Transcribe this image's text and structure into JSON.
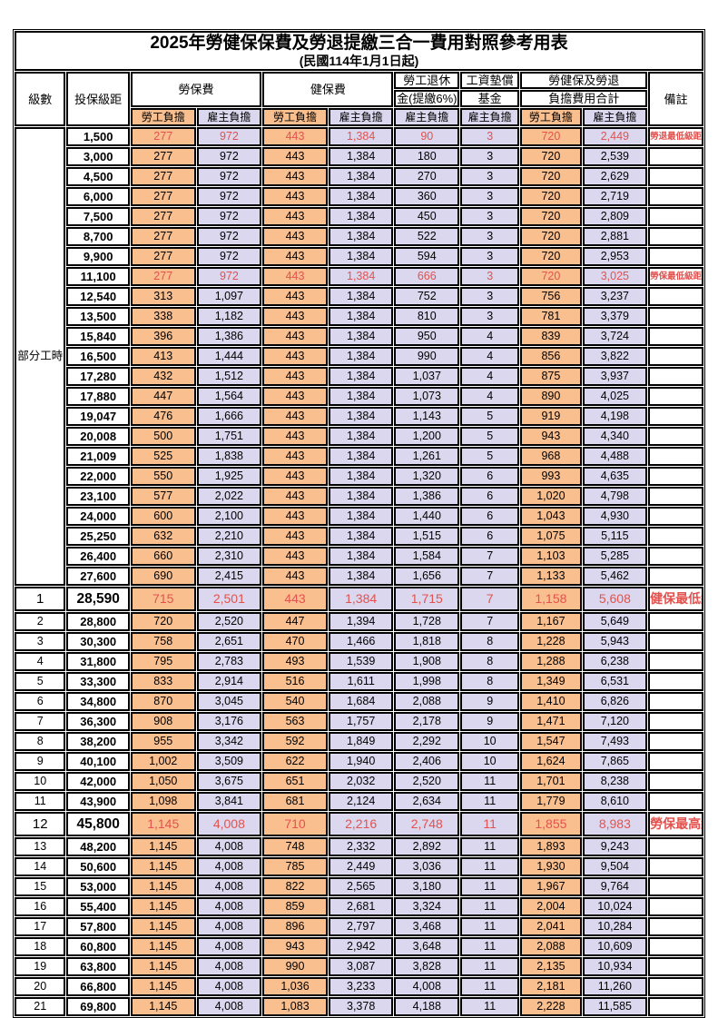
{
  "title": {
    "main": "2025年勞健保保費及勞退提繳三合一費用對照參考用表",
    "subtitle": "(民國114年1月1日起)"
  },
  "headers": {
    "level": "級數",
    "bracket": "投保級距",
    "labor_insurance": "勞保費",
    "health_insurance": "健保費",
    "pension_line1": "勞工退休",
    "pension_line2": "金(提繳6%)",
    "wage_fund_line1": "工資墊償",
    "wage_fund_line2": "基金",
    "total_line1": "勞健保及勞退",
    "total_line2": "負擔費用合計",
    "notes": "備註",
    "employee": "勞工負擔",
    "employer": "雇主負擔"
  },
  "part_time_label": "部分工時",
  "colors": {
    "employee_bg": "#fabf8f",
    "employer_bg": "#dbd7ee",
    "highlight_red": "#e3524e"
  },
  "rows": [
    {
      "lv": "",
      "bk": "1,500",
      "v": [
        "277",
        "972",
        "443",
        "1,384",
        "90",
        "3",
        "720",
        "2,449"
      ],
      "note": "勞退最低級距",
      "red": true
    },
    {
      "lv": "",
      "bk": "3,000",
      "v": [
        "277",
        "972",
        "443",
        "1,384",
        "180",
        "3",
        "720",
        "2,539"
      ],
      "note": ""
    },
    {
      "lv": "",
      "bk": "4,500",
      "v": [
        "277",
        "972",
        "443",
        "1,384",
        "270",
        "3",
        "720",
        "2,629"
      ],
      "note": ""
    },
    {
      "lv": "",
      "bk": "6,000",
      "v": [
        "277",
        "972",
        "443",
        "1,384",
        "360",
        "3",
        "720",
        "2,719"
      ],
      "note": ""
    },
    {
      "lv": "",
      "bk": "7,500",
      "v": [
        "277",
        "972",
        "443",
        "1,384",
        "450",
        "3",
        "720",
        "2,809"
      ],
      "note": ""
    },
    {
      "lv": "",
      "bk": "8,700",
      "v": [
        "277",
        "972",
        "443",
        "1,384",
        "522",
        "3",
        "720",
        "2,881"
      ],
      "note": ""
    },
    {
      "lv": "",
      "bk": "9,900",
      "v": [
        "277",
        "972",
        "443",
        "1,384",
        "594",
        "3",
        "720",
        "2,953"
      ],
      "note": ""
    },
    {
      "lv": "",
      "bk": "11,100",
      "v": [
        "277",
        "972",
        "443",
        "1,384",
        "666",
        "3",
        "720",
        "3,025"
      ],
      "note": "勞保最低級距",
      "red": true
    },
    {
      "lv": "",
      "bk": "12,540",
      "v": [
        "313",
        "1,097",
        "443",
        "1,384",
        "752",
        "3",
        "756",
        "3,237"
      ],
      "note": ""
    },
    {
      "lv": "",
      "bk": "13,500",
      "v": [
        "338",
        "1,182",
        "443",
        "1,384",
        "810",
        "3",
        "781",
        "3,379"
      ],
      "note": ""
    },
    {
      "lv": "",
      "bk": "15,840",
      "v": [
        "396",
        "1,386",
        "443",
        "1,384",
        "950",
        "4",
        "839",
        "3,724"
      ],
      "note": ""
    },
    {
      "lv": "",
      "bk": "16,500",
      "v": [
        "413",
        "1,444",
        "443",
        "1,384",
        "990",
        "4",
        "856",
        "3,822"
      ],
      "note": ""
    },
    {
      "lv": "",
      "bk": "17,280",
      "v": [
        "432",
        "1,512",
        "443",
        "1,384",
        "1,037",
        "4",
        "875",
        "3,937"
      ],
      "note": ""
    },
    {
      "lv": "",
      "bk": "17,880",
      "v": [
        "447",
        "1,564",
        "443",
        "1,384",
        "1,073",
        "4",
        "890",
        "4,025"
      ],
      "note": ""
    },
    {
      "lv": "",
      "bk": "19,047",
      "v": [
        "476",
        "1,666",
        "443",
        "1,384",
        "1,143",
        "5",
        "919",
        "4,198"
      ],
      "note": ""
    },
    {
      "lv": "",
      "bk": "20,008",
      "v": [
        "500",
        "1,751",
        "443",
        "1,384",
        "1,200",
        "5",
        "943",
        "4,340"
      ],
      "note": ""
    },
    {
      "lv": "",
      "bk": "21,009",
      "v": [
        "525",
        "1,838",
        "443",
        "1,384",
        "1,261",
        "5",
        "968",
        "4,488"
      ],
      "note": ""
    },
    {
      "lv": "",
      "bk": "22,000",
      "v": [
        "550",
        "1,925",
        "443",
        "1,384",
        "1,320",
        "6",
        "993",
        "4,635"
      ],
      "note": ""
    },
    {
      "lv": "",
      "bk": "23,100",
      "v": [
        "577",
        "2,022",
        "443",
        "1,384",
        "1,386",
        "6",
        "1,020",
        "4,798"
      ],
      "note": ""
    },
    {
      "lv": "",
      "bk": "24,000",
      "v": [
        "600",
        "2,100",
        "443",
        "1,384",
        "1,440",
        "6",
        "1,043",
        "4,930"
      ],
      "note": ""
    },
    {
      "lv": "",
      "bk": "25,250",
      "v": [
        "632",
        "2,210",
        "443",
        "1,384",
        "1,515",
        "6",
        "1,075",
        "5,115"
      ],
      "note": ""
    },
    {
      "lv": "",
      "bk": "26,400",
      "v": [
        "660",
        "2,310",
        "443",
        "1,384",
        "1,584",
        "7",
        "1,103",
        "5,285"
      ],
      "note": ""
    },
    {
      "lv": "",
      "bk": "27,600",
      "v": [
        "690",
        "2,415",
        "443",
        "1,384",
        "1,656",
        "7",
        "1,133",
        "5,462"
      ],
      "note": ""
    },
    {
      "lv": "1",
      "bk": "28,590",
      "v": [
        "715",
        "2,501",
        "443",
        "1,384",
        "1,715",
        "7",
        "1,158",
        "5,608"
      ],
      "note": "健保最低級距",
      "red": true,
      "em": true
    },
    {
      "lv": "2",
      "bk": "28,800",
      "v": [
        "720",
        "2,520",
        "447",
        "1,394",
        "1,728",
        "7",
        "1,167",
        "5,649"
      ],
      "note": ""
    },
    {
      "lv": "3",
      "bk": "30,300",
      "v": [
        "758",
        "2,651",
        "470",
        "1,466",
        "1,818",
        "8",
        "1,228",
        "5,943"
      ],
      "note": ""
    },
    {
      "lv": "4",
      "bk": "31,800",
      "v": [
        "795",
        "2,783",
        "493",
        "1,539",
        "1,908",
        "8",
        "1,288",
        "6,238"
      ],
      "note": ""
    },
    {
      "lv": "5",
      "bk": "33,300",
      "v": [
        "833",
        "2,914",
        "516",
        "1,611",
        "1,998",
        "8",
        "1,349",
        "6,531"
      ],
      "note": ""
    },
    {
      "lv": "6",
      "bk": "34,800",
      "v": [
        "870",
        "3,045",
        "540",
        "1,684",
        "2,088",
        "9",
        "1,410",
        "6,826"
      ],
      "note": ""
    },
    {
      "lv": "7",
      "bk": "36,300",
      "v": [
        "908",
        "3,176",
        "563",
        "1,757",
        "2,178",
        "9",
        "1,471",
        "7,120"
      ],
      "note": ""
    },
    {
      "lv": "8",
      "bk": "38,200",
      "v": [
        "955",
        "3,342",
        "592",
        "1,849",
        "2,292",
        "10",
        "1,547",
        "7,493"
      ],
      "note": ""
    },
    {
      "lv": "9",
      "bk": "40,100",
      "v": [
        "1,002",
        "3,509",
        "622",
        "1,940",
        "2,406",
        "10",
        "1,624",
        "7,865"
      ],
      "note": ""
    },
    {
      "lv": "10",
      "bk": "42,000",
      "v": [
        "1,050",
        "3,675",
        "651",
        "2,032",
        "2,520",
        "11",
        "1,701",
        "8,238"
      ],
      "note": ""
    },
    {
      "lv": "11",
      "bk": "43,900",
      "v": [
        "1,098",
        "3,841",
        "681",
        "2,124",
        "2,634",
        "11",
        "1,779",
        "8,610"
      ],
      "note": ""
    },
    {
      "lv": "12",
      "bk": "45,800",
      "v": [
        "1,145",
        "4,008",
        "710",
        "2,216",
        "2,748",
        "11",
        "1,855",
        "8,983"
      ],
      "note": "勞保最高級距",
      "red": true,
      "em": true
    },
    {
      "lv": "13",
      "bk": "48,200",
      "v": [
        "1,145",
        "4,008",
        "748",
        "2,332",
        "2,892",
        "11",
        "1,893",
        "9,243"
      ],
      "note": ""
    },
    {
      "lv": "14",
      "bk": "50,600",
      "v": [
        "1,145",
        "4,008",
        "785",
        "2,449",
        "3,036",
        "11",
        "1,930",
        "9,504"
      ],
      "note": ""
    },
    {
      "lv": "15",
      "bk": "53,000",
      "v": [
        "1,145",
        "4,008",
        "822",
        "2,565",
        "3,180",
        "11",
        "1,967",
        "9,764"
      ],
      "note": ""
    },
    {
      "lv": "16",
      "bk": "55,400",
      "v": [
        "1,145",
        "4,008",
        "859",
        "2,681",
        "3,324",
        "11",
        "2,004",
        "10,024"
      ],
      "note": ""
    },
    {
      "lv": "17",
      "bk": "57,800",
      "v": [
        "1,145",
        "4,008",
        "896",
        "2,797",
        "3,468",
        "11",
        "2,041",
        "10,284"
      ],
      "note": ""
    },
    {
      "lv": "18",
      "bk": "60,800",
      "v": [
        "1,145",
        "4,008",
        "943",
        "2,942",
        "3,648",
        "11",
        "2,088",
        "10,609"
      ],
      "note": ""
    },
    {
      "lv": "19",
      "bk": "63,800",
      "v": [
        "1,145",
        "4,008",
        "990",
        "3,087",
        "3,828",
        "11",
        "2,135",
        "10,934"
      ],
      "note": ""
    },
    {
      "lv": "20",
      "bk": "66,800",
      "v": [
        "1,145",
        "4,008",
        "1,036",
        "3,233",
        "4,008",
        "11",
        "2,181",
        "11,260"
      ],
      "note": ""
    },
    {
      "lv": "21",
      "bk": "69,800",
      "v": [
        "1,145",
        "4,008",
        "1,083",
        "3,378",
        "4,188",
        "11",
        "2,228",
        "11,585"
      ],
      "note": ""
    }
  ]
}
